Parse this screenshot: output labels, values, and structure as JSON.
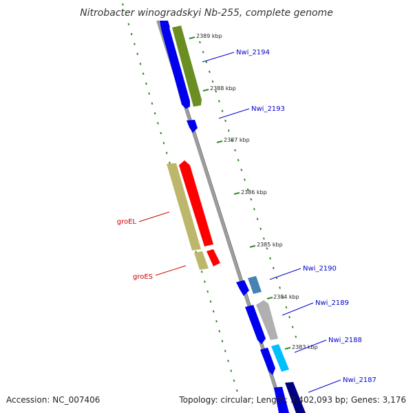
{
  "title": "Nitrobacter winogradskyi Nb-255, complete genome",
  "footer": {
    "accession": "Accession: NC_007406",
    "summary": "Topology: circular; Length: 3,402,093 bp; Genes: 3,176"
  },
  "colors": {
    "background": "#ffffff",
    "backbone": "#9a9a9a",
    "backbone_dark": "#555555",
    "gc_ticks": "#2e8b22",
    "forward_genes": "#0000ee",
    "olive_genes": "#6b8e23",
    "khaki_genes": "#bdb76b",
    "red_genes": "#ff0000",
    "steelblue_gene": "#4682b4",
    "grey_gene": "#b0b0b0",
    "cyan_gene": "#00bfff",
    "navy_gene": "#000080",
    "label_blue": "#0000cc",
    "label_red": "#cc0000"
  },
  "scale_ticks": [
    {
      "label": "2389 kbp"
    },
    {
      "label": "2388 kbp"
    },
    {
      "label": "2387 kbp"
    },
    {
      "label": "2386 kbp"
    },
    {
      "label": "2385 kbp"
    },
    {
      "label": "2384 kbp"
    },
    {
      "label": "2383 kbp"
    }
  ],
  "gene_labels": [
    {
      "text": "Nwi_2194",
      "color": "#0000cc"
    },
    {
      "text": "Nwi_2193",
      "color": "#0000cc"
    },
    {
      "text": "groEL",
      "color": "#cc0000"
    },
    {
      "text": "groES",
      "color": "#cc0000"
    },
    {
      "text": "Nwi_2190",
      "color": "#0000cc"
    },
    {
      "text": "Nwi_2189",
      "color": "#0000cc"
    },
    {
      "text": "Nwi_2188",
      "color": "#0000cc"
    },
    {
      "text": "Nwi_2187",
      "color": "#0000cc"
    }
  ]
}
